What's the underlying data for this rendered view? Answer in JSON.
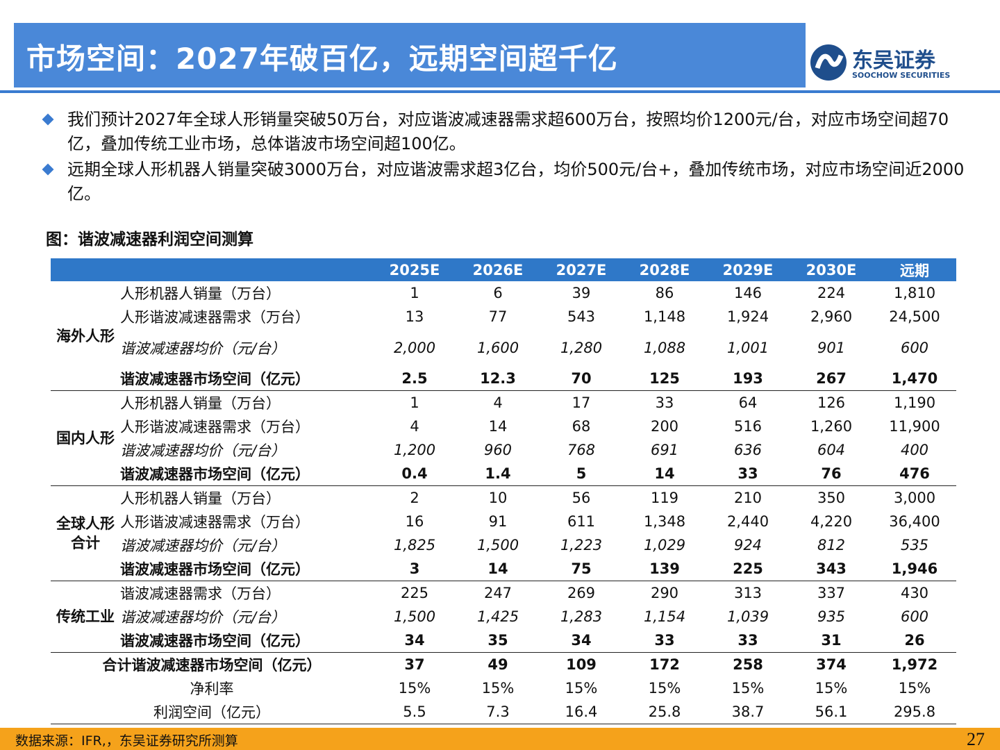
{
  "header": {
    "title": "市场空间：2027年破百亿，远期空间超千亿",
    "logo_cn": "东吴证券",
    "logo_en": "SOOCHOW SECURITIES"
  },
  "bullets": [
    "我们预计2027年全球人形销量突破50万台，对应谐波减速器需求超600万台，按照均价1200元/台，对应市场空间超70亿，叠加传统工业市场，总体谐波市场空间超100亿。",
    "远期全球人形机器人销量突破3000万台，对应谐波需求超3亿台，均价500元/台+，叠加传统市场，对应市场空间近2000亿。"
  ],
  "figure_title": "图：谐波减速器利润空间测算",
  "table": {
    "columns": [
      "2025E",
      "2026E",
      "2027E",
      "2028E",
      "2029E",
      "2030E",
      "远期"
    ],
    "groups": [
      {
        "label": "海外人形",
        "rows": [
          {
            "label": "人形机器人销量（万台）",
            "style": "normal",
            "values": [
              "1",
              "6",
              "39",
              "86",
              "146",
              "224",
              "1,810"
            ]
          },
          {
            "label": "人形谐波减速器需求（万台）",
            "style": "normal",
            "values": [
              "13",
              "77",
              "543",
              "1,148",
              "1,924",
              "2,960",
              "24,500"
            ]
          },
          {
            "label": "谐波减速器均价（元/台）",
            "style": "italic",
            "values": [
              "2,000",
              "1,600",
              "1,280",
              "1,088",
              "1,001",
              "901",
              "600"
            ]
          },
          {
            "label": "谐波减速器市场空间（亿元）",
            "style": "bold",
            "values": [
              "2.5",
              "12.3",
              "70",
              "125",
              "193",
              "267",
              "1,470"
            ]
          }
        ]
      },
      {
        "label": "国内人形",
        "rows": [
          {
            "label": "人形机器人销量（万台）",
            "style": "normal",
            "values": [
              "1",
              "4",
              "17",
              "33",
              "64",
              "126",
              "1,190"
            ]
          },
          {
            "label": "人形谐波减速器需求（万台）",
            "style": "normal",
            "values": [
              "4",
              "14",
              "68",
              "200",
              "516",
              "1,260",
              "11,900"
            ]
          },
          {
            "label": "谐波减速器均价（元/台）",
            "style": "italic",
            "values": [
              "1,200",
              "960",
              "768",
              "691",
              "636",
              "604",
              "400"
            ]
          },
          {
            "label": "谐波减速器市场空间（亿元）",
            "style": "bold",
            "values": [
              "0.4",
              "1.4",
              "5",
              "14",
              "33",
              "76",
              "476"
            ]
          }
        ]
      },
      {
        "label": "全球人形合计",
        "rows": [
          {
            "label": "人形机器人销量（万台）",
            "style": "normal",
            "values": [
              "2",
              "10",
              "56",
              "119",
              "210",
              "350",
              "3,000"
            ]
          },
          {
            "label": "人形谐波减速器需求（万台）",
            "style": "normal",
            "values": [
              "16",
              "91",
              "611",
              "1,348",
              "2,440",
              "4,220",
              "36,400"
            ]
          },
          {
            "label": "谐波减速器均价（元/台）",
            "style": "italic",
            "values": [
              "1,825",
              "1,500",
              "1,223",
              "1,029",
              "924",
              "812",
              "535"
            ]
          },
          {
            "label": "谐波减速器市场空间（亿元）",
            "style": "bold",
            "values": [
              "3",
              "14",
              "75",
              "139",
              "225",
              "343",
              "1,946"
            ]
          }
        ]
      },
      {
        "label": "传统工业",
        "rows": [
          {
            "label": "谐波减速器需求（万台）",
            "style": "normal",
            "values": [
              "225",
              "247",
              "269",
              "290",
              "313",
              "337",
              "430"
            ]
          },
          {
            "label": "谐波减速器均价（元/台）",
            "style": "italic",
            "values": [
              "1,500",
              "1,425",
              "1,283",
              "1,154",
              "1,039",
              "935",
              "600"
            ]
          },
          {
            "label": "谐波减速器市场空间（亿元）",
            "style": "bold",
            "values": [
              "34",
              "35",
              "34",
              "33",
              "33",
              "31",
              "26"
            ]
          }
        ]
      },
      {
        "rows": [
          {
            "label": "合计谐波减速器市场空间（亿元）",
            "style": "bold",
            "values": [
              "37",
              "49",
              "109",
              "172",
              "258",
              "374",
              "1,972"
            ]
          },
          {
            "label": "净利率",
            "style": "normal",
            "values": [
              "15%",
              "15%",
              "15%",
              "15%",
              "15%",
              "15%",
              "15%"
            ]
          },
          {
            "label": "利润空间（亿元）",
            "style": "normal",
            "values": [
              "5.5",
              "7.3",
              "16.4",
              "25.8",
              "38.7",
              "56.1",
              "295.8"
            ]
          }
        ]
      }
    ]
  },
  "footer": {
    "source": "数据来源：IFR,，东吴证券研究所测算",
    "page": "27"
  }
}
